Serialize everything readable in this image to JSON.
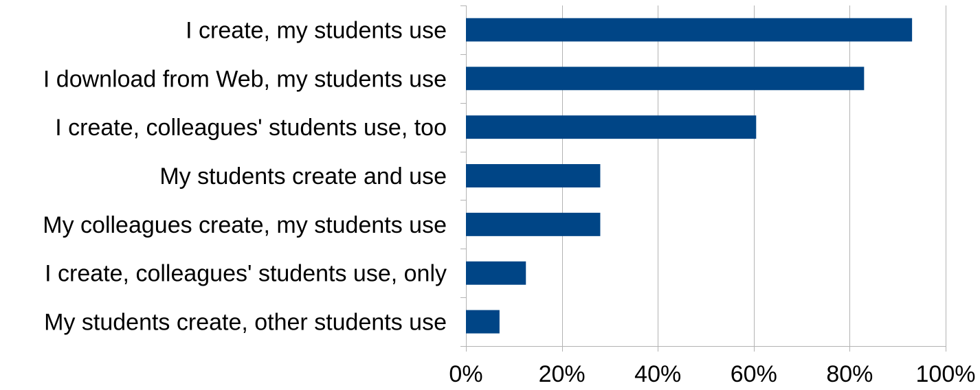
{
  "chart_data": {
    "type": "bar",
    "orientation": "horizontal",
    "title": "",
    "xlabel": "",
    "ylabel": "",
    "categories": [
      "I create, my students use",
      "I download from Web, my students use",
      "I create, colleagues' students use, too",
      "My students create and use",
      "My colleagues create, my students use",
      "I create, colleagues' students use, only",
      "My students create, other students use"
    ],
    "values": [
      93,
      83,
      60.5,
      28,
      28,
      12.5,
      7
    ],
    "xlim": [
      0,
      100
    ],
    "xticks": [
      0,
      20,
      40,
      60,
      80,
      100
    ],
    "tick_labels": [
      "0%",
      "20%",
      "40%",
      "60%",
      "80%",
      "100%"
    ],
    "grid": "vertical",
    "legend": "none",
    "bar_color": "#004586"
  }
}
